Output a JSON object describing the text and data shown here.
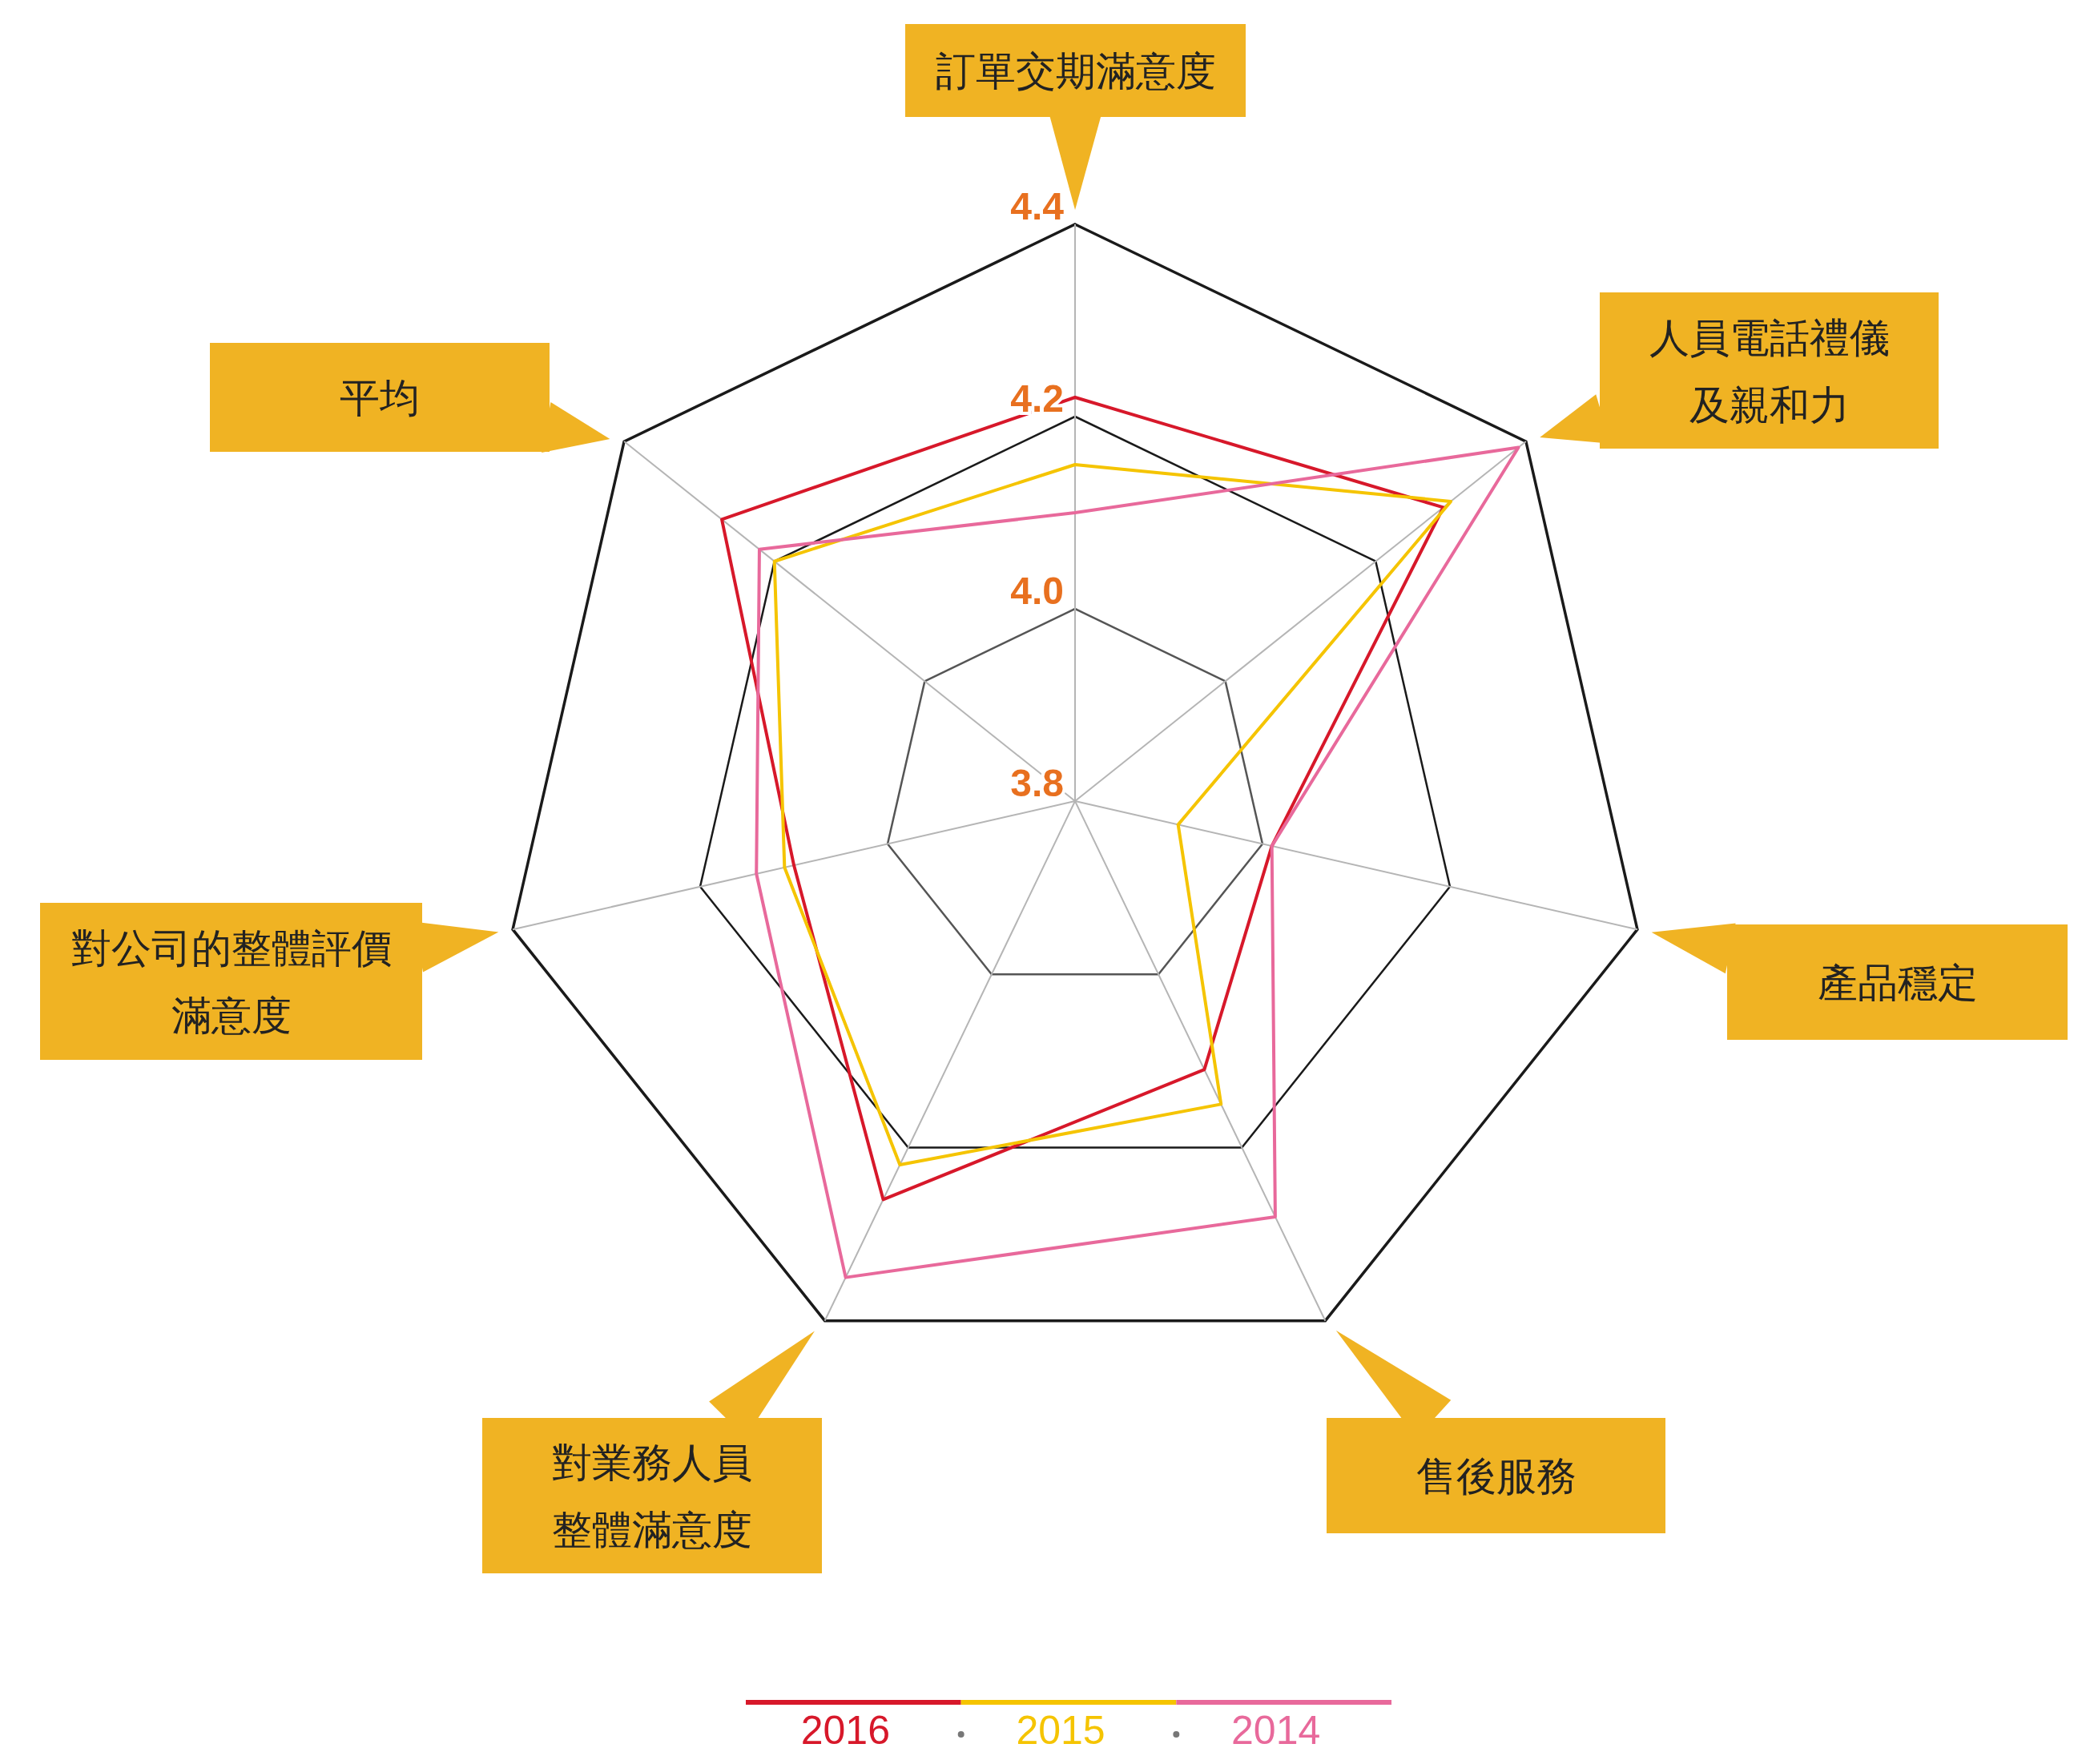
{
  "chart_data": {
    "type": "radar",
    "categories": [
      "訂單交期滿意度",
      "人員電話禮儀及親和力",
      "產品穩定",
      "售後服務",
      "對業務人員整體滿意度",
      "對公司的整體評價滿意度",
      "平均"
    ],
    "ylim": [
      3.8,
      4.4
    ],
    "yticks": [
      3.8,
      {
        "value": 4.0,
        "label": "4.0"
      },
      4.2,
      4.4
    ],
    "grid": true,
    "legend": "bottom",
    "series": [
      {
        "name": "2016",
        "color": "#d7182a",
        "values": [
          4.22,
          4.29,
          4.01,
          4.11,
          4.26,
          4.1,
          4.27
        ]
      },
      {
        "name": "2015",
        "color": "#f5c400",
        "values": [
          4.15,
          4.3,
          3.91,
          4.15,
          4.22,
          4.11,
          4.2
        ]
      },
      {
        "name": "2014",
        "color": "#e8699b",
        "values": [
          4.1,
          4.39,
          4.01,
          4.28,
          4.35,
          4.14,
          4.22
        ]
      }
    ]
  }
}
